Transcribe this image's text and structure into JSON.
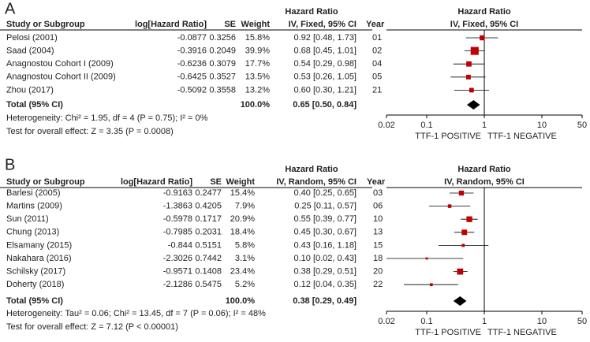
{
  "panels": [
    {
      "label": "A",
      "headers": {
        "study": "Study or Subgroup",
        "loghr": "log[Hazard Ratio]",
        "se": "SE",
        "weight": "Weight",
        "hr_title": "Hazard Ratio",
        "hr_method": "IV, Fixed, 95% CI",
        "year": "Year",
        "plot_title": "Hazard Ratio",
        "plot_method": "IV, Fixed, 95% CI"
      },
      "rows": [
        {
          "study": "Pelosi (2001)",
          "loghr": -0.0877,
          "se": 0.3256,
          "weight": 15.8,
          "weight_label": "15.8%",
          "hr": 0.92,
          "lo": 0.48,
          "hi": 1.73,
          "ci_label": "0.92 [0.48, 1.73]",
          "year": "01"
        },
        {
          "study": "Saad (2004)",
          "loghr": -0.3916,
          "se": 0.2049,
          "weight": 39.9,
          "weight_label": "39.9%",
          "hr": 0.68,
          "lo": 0.45,
          "hi": 1.01,
          "ci_label": "0.68 [0.45, 1.01]",
          "year": "02"
        },
        {
          "study": "Anagnostou Cohort I (2009)",
          "loghr": -0.6236,
          "se": 0.3079,
          "weight": 17.7,
          "weight_label": "17.7%",
          "hr": 0.54,
          "lo": 0.29,
          "hi": 0.98,
          "ci_label": "0.54 [0.29, 0.98]",
          "year": "04"
        },
        {
          "study": "Anagnostou Cohort II (2009)",
          "loghr": -0.6425,
          "se": 0.3527,
          "weight": 13.5,
          "weight_label": "13.5%",
          "hr": 0.53,
          "lo": 0.26,
          "hi": 1.05,
          "ci_label": "0.53 [0.26, 1.05]",
          "year": "05"
        },
        {
          "study": "Zhou (2017)",
          "loghr": -0.5092,
          "se": 0.3558,
          "weight": 13.2,
          "weight_label": "13.2%",
          "hr": 0.6,
          "lo": 0.3,
          "hi": 1.21,
          "ci_label": "0.60 [0.30, 1.21]",
          "year": "21"
        }
      ],
      "total": {
        "label": "Total (95% CI)",
        "weight": "100.0%",
        "hr": 0.65,
        "lo": 0.5,
        "hi": 0.84,
        "ci_label": "0.65 [0.50, 0.84]"
      },
      "heterogeneity": "Heterogeneity: Chi² = 1.95, df = 4 (P = 0.75); I² = 0%",
      "overall": "Test for overall effect: Z = 3.35 (P = 0.0008)",
      "log_scale": true,
      "xlim": [
        0.02,
        50
      ],
      "xticks": [
        0.02,
        0.1,
        1,
        10,
        50
      ],
      "x_left": "TTF-1 POSITIVE",
      "x_right": "TTF-1 NEGATIVE",
      "color": "#c00000"
    },
    {
      "label": "B",
      "headers": {
        "study": "Study or Subgroup",
        "loghr": "log[Hazard Ratio]",
        "se": "SE",
        "weight": "Weight",
        "hr_title": "Hazard Ratio",
        "hr_method": "IV, Random, 95% CI",
        "year": "Year",
        "plot_title": "Hazard Ratio",
        "plot_method": "IV, Random, 95% CI"
      },
      "rows": [
        {
          "study": "Barlesi (2005)",
          "loghr": -0.9163,
          "se": 0.2477,
          "weight": 15.4,
          "weight_label": "15.4%",
          "hr": 0.4,
          "lo": 0.25,
          "hi": 0.65,
          "ci_label": "0.40 [0.25, 0.65]",
          "year": "03"
        },
        {
          "study": "Martins (2009)",
          "loghr": -1.3863,
          "se": 0.4205,
          "weight": 7.9,
          "weight_label": "7.9%",
          "hr": 0.25,
          "lo": 0.11,
          "hi": 0.57,
          "ci_label": "0.25 [0.11, 0.57]",
          "year": "06"
        },
        {
          "study": "Sun (2011)",
          "loghr": -0.5978,
          "se": 0.1717,
          "weight": 20.9,
          "weight_label": "20.9%",
          "hr": 0.55,
          "lo": 0.39,
          "hi": 0.77,
          "ci_label": "0.55 [0.39, 0.77]",
          "year": "10"
        },
        {
          "study": "Chung (2013)",
          "loghr": -0.7985,
          "se": 0.2031,
          "weight": 18.4,
          "weight_label": "18.4%",
          "hr": 0.45,
          "lo": 0.3,
          "hi": 0.67,
          "ci_label": "0.45 [0.30, 0.67]",
          "year": "13"
        },
        {
          "study": "Elsamany (2015)",
          "loghr": -0.844,
          "se": 0.5151,
          "weight": 5.8,
          "weight_label": "5.8%",
          "hr": 0.43,
          "lo": 0.16,
          "hi": 1.18,
          "ci_label": "0.43 [0.16, 1.18]",
          "year": "15"
        },
        {
          "study": "Nakahara (2016)",
          "loghr": -2.3026,
          "se": 0.7442,
          "weight": 3.1,
          "weight_label": "3.1%",
          "hr": 0.1,
          "lo": 0.02,
          "hi": 0.43,
          "ci_label": "0.10 [0.02, 0.43]",
          "year": "18"
        },
        {
          "study": "Schilsky (2017)",
          "loghr": -0.9571,
          "se": 0.1408,
          "weight": 23.4,
          "weight_label": "23.4%",
          "hr": 0.38,
          "lo": 0.29,
          "hi": 0.51,
          "ci_label": "0.38 [0.29, 0.51]",
          "year": "20"
        },
        {
          "study": "Doherty (2018)",
          "loghr": -2.1286,
          "se": 0.5475,
          "weight": 5.2,
          "weight_label": "5.2%",
          "hr": 0.12,
          "lo": 0.04,
          "hi": 0.35,
          "ci_label": "0.12 [0.04, 0.35]",
          "year": "22"
        }
      ],
      "total": {
        "label": "Total (95% CI)",
        "weight": "100.0%",
        "hr": 0.38,
        "lo": 0.29,
        "hi": 0.49,
        "ci_label": "0.38 [0.29, 0.49]"
      },
      "heterogeneity": "Heterogeneity: Tau² = 0.06; Chi² = 13.45, df = 7 (P = 0.06); I² = 48%",
      "overall": "Test for overall effect: Z = 7.12 (P < 0.00001)",
      "log_scale": true,
      "xlim": [
        0.02,
        50
      ],
      "xticks": [
        0.02,
        0.1,
        1,
        10,
        50
      ],
      "x_left": "TTF-1 POSITIVE",
      "x_right": "TTF-1 NEGATIVE",
      "color": "#c00000"
    }
  ]
}
